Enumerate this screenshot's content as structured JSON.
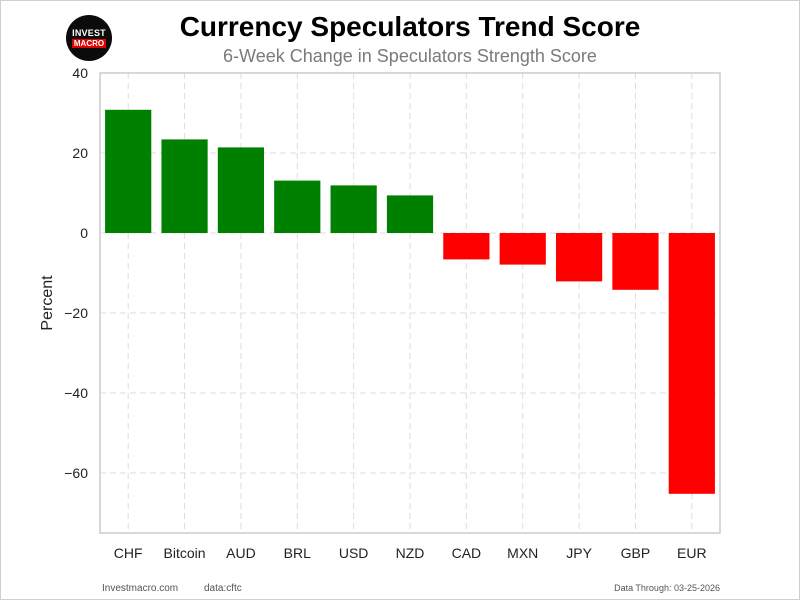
{
  "logo": {
    "line1": "INVEST",
    "line2": "MACRO"
  },
  "footer": {
    "site": "Investmacro.com",
    "source": "data:cftc",
    "data_through": "Data Through: 03-25-2026"
  },
  "colors": {
    "positive": "#008000",
    "negative": "#ff0000",
    "grid": "#dddddd",
    "axis": "#cccccc"
  },
  "chart_data": {
    "type": "bar",
    "title": "Currency Speculators Trend Score",
    "subtitle": "6-Week Change in Speculators Strength Score",
    "xlabel": "",
    "ylabel": "Percent",
    "categories": [
      "CHF",
      "Bitcoin",
      "AUD",
      "BRL",
      "USD",
      "NZD",
      "CAD",
      "MXN",
      "JPY",
      "GBP",
      "EUR"
    ],
    "values": [
      30.8,
      23.4,
      21.4,
      13.1,
      11.9,
      9.4,
      -6.6,
      -7.9,
      -12.1,
      -14.2,
      -65.2
    ],
    "ylim": [
      -75,
      40
    ],
    "yticks": [
      40,
      20,
      0,
      -20,
      -40,
      -60
    ],
    "ytick_labels": [
      "40",
      "20",
      "0",
      "−20",
      "−40",
      "−60"
    ],
    "grid": true,
    "legend": "none"
  }
}
